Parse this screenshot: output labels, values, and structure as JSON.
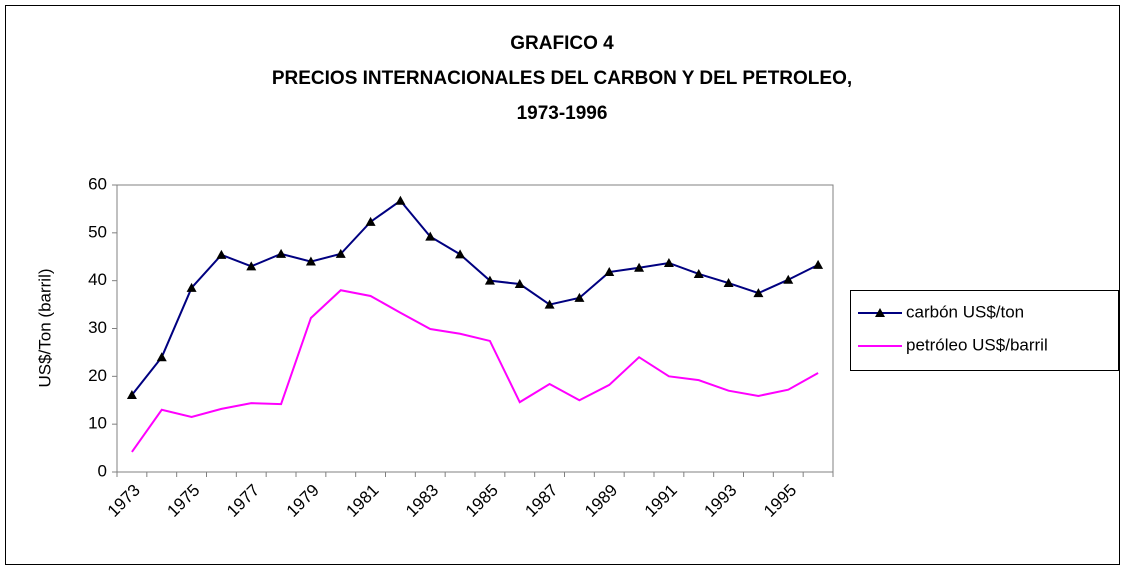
{
  "chart_data": {
    "type": "line",
    "title": [
      "GRAFICO 4",
      "PRECIOS INTERNACIONALES DEL CARBON Y DEL PETROLEO,",
      "1973-1996"
    ],
    "y_label": "US$/Ton (barril)",
    "categories": [
      "1973",
      null,
      "1975",
      null,
      "1977",
      null,
      "1979",
      null,
      "1981",
      null,
      "1983",
      null,
      "1985",
      null,
      "1987",
      null,
      "1989",
      null,
      "1991",
      null,
      "1993",
      null,
      "1995",
      null
    ],
    "series": [
      {
        "name": "carbón US$/ton",
        "color": "#000080",
        "marker": "triangle",
        "values": [
          16.1,
          24,
          38.5,
          45.4,
          43,
          45.6,
          44,
          45.6,
          52.3,
          56.7,
          49.2,
          45.5,
          40,
          39.3,
          35,
          36.4,
          41.8,
          42.7,
          43.7,
          41.4,
          39.5,
          37.4,
          40.2,
          43.3
        ]
      },
      {
        "name": "petróleo US$/barril",
        "color": "#ff00ff",
        "marker": "none",
        "values": [
          4.2,
          13,
          11.5,
          13.2,
          14.4,
          14.2,
          32.2,
          38,
          36.8,
          33.3,
          29.9,
          28.9,
          27.4,
          14.6,
          18.4,
          15,
          18.2,
          24,
          20,
          19.2,
          17,
          15.9,
          17.2,
          20.7
        ]
      }
    ],
    "ylim": [
      0,
      60
    ],
    "yticks": [
      0,
      10,
      20,
      30,
      40,
      50,
      60
    ],
    "grid": false,
    "legend": "right"
  }
}
